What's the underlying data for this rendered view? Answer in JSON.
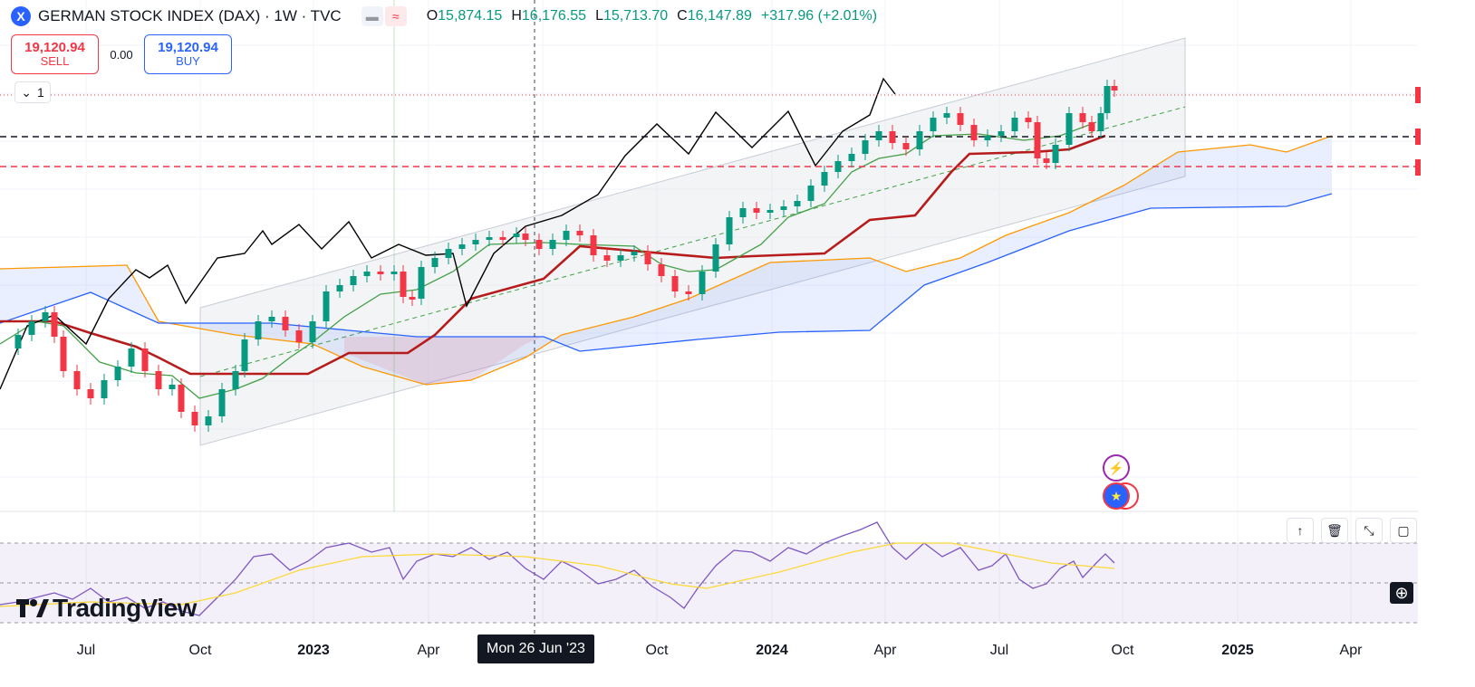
{
  "symbol": {
    "logo_glyph": "X",
    "title": "GERMAN STOCK INDEX (DAX) · 1W · TVC"
  },
  "ohlc": {
    "o_key": "O",
    "o_val": "15,874.15",
    "h_key": "H",
    "h_val": "16,176.55",
    "l_key": "L",
    "l_val": "15,713.70",
    "c_key": "C",
    "c_val": "16,147.89",
    "change": "+317.96 (+2.01%)"
  },
  "trade": {
    "sell_price": "19,120.94",
    "sell_label": "SELL",
    "spread": "0.00",
    "buy_price": "19,120.94",
    "buy_label": "BUY"
  },
  "collapse": {
    "icon": "chevron-down-icon",
    "count": "1"
  },
  "time_axis": {
    "ticks": [
      "Jul",
      "Oct",
      "2023",
      "Apr",
      "Oct",
      "2024",
      "Apr",
      "Jul",
      "Oct",
      "2025",
      "Apr"
    ],
    "crosshair_label": "Mon 26 Jun '23"
  },
  "pane_tools": [
    "arrow-up-icon",
    "trash-icon",
    "collapse-icon",
    "maximize-icon"
  ],
  "brand": {
    "name": "TradingView"
  },
  "colors": {
    "up": "#089981",
    "down": "#f23645",
    "accent": "#2962ff",
    "kijun": "#b71c1c",
    "tenkan": "#43a047",
    "span_a": "#ff9800",
    "span_b": "#2962ff",
    "lagging": "#000000",
    "rsi": "#7e57c2",
    "rsi_ma": "#fdd835"
  },
  "chart_data": {
    "type": "candlestick",
    "series_indicator": "Ichimoku Cloud",
    "lower_indicator": "RSI",
    "ohlc_last": {
      "open": 15874.15,
      "high": 16176.55,
      "low": 15713.7,
      "close": 16147.89
    }
  }
}
